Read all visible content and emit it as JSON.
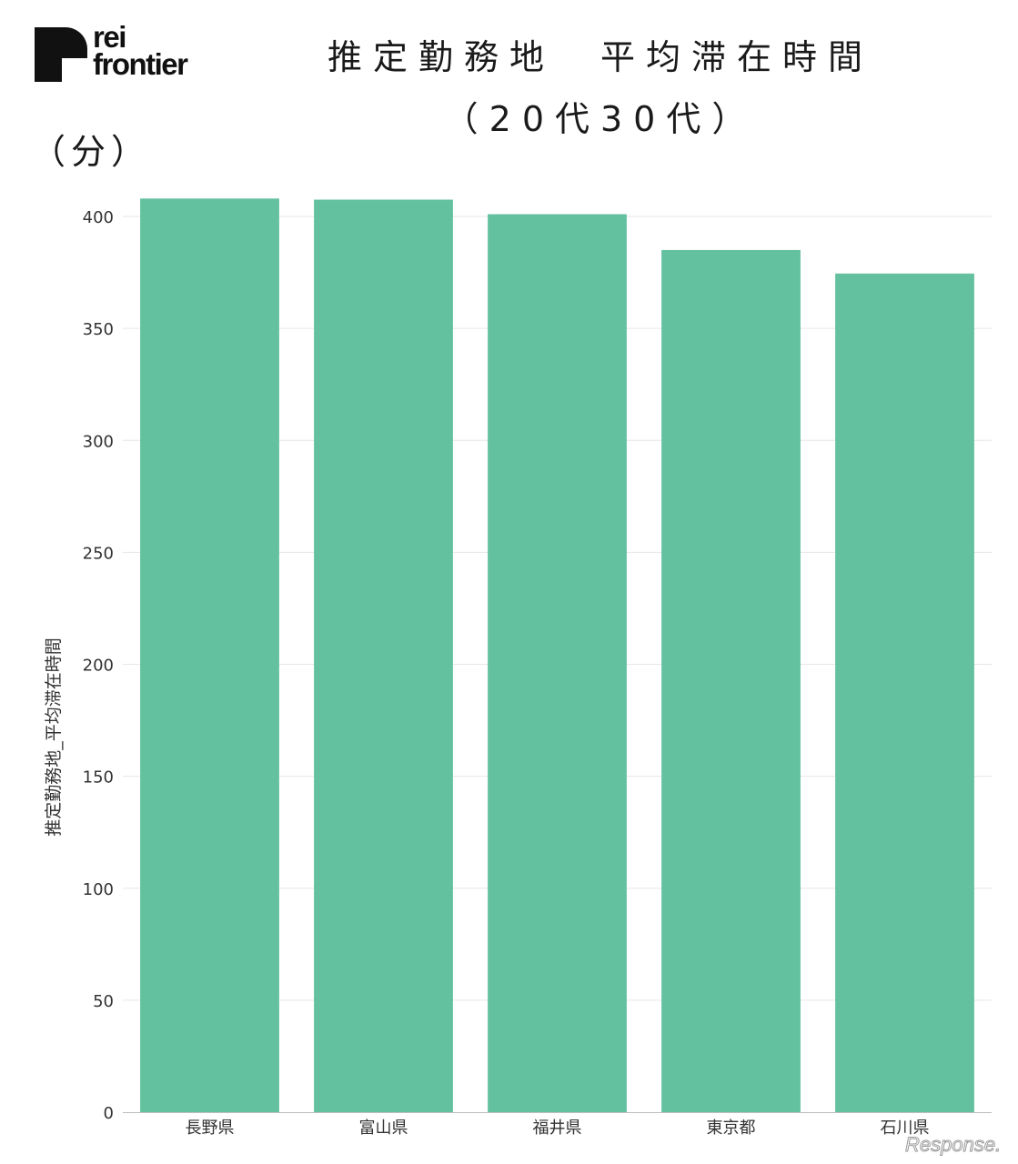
{
  "logo": {
    "line1": "rei",
    "line2": "frontier"
  },
  "title": {
    "line1": "推定勤務地　平均滞在時間",
    "line2": "（20代30代）"
  },
  "unit_label": "（分）",
  "watermark": "Response.",
  "colors": {
    "bar": "#64c1a0",
    "grid": "#e6e6e6",
    "axis": "#bdbdbd",
    "text": "#333333"
  },
  "chart_data": {
    "type": "bar",
    "categories": [
      "長野県",
      "富山県",
      "福井県",
      "東京都",
      "石川県"
    ],
    "values": [
      408,
      407.5,
      401,
      385,
      374.5
    ],
    "ylabel": "推定勤務地_平均滞在時間",
    "xlabel": "",
    "ylim": [
      0,
      400
    ],
    "yticks": [
      0,
      50,
      100,
      150,
      200,
      250,
      300,
      350,
      400
    ],
    "grid": true
  }
}
